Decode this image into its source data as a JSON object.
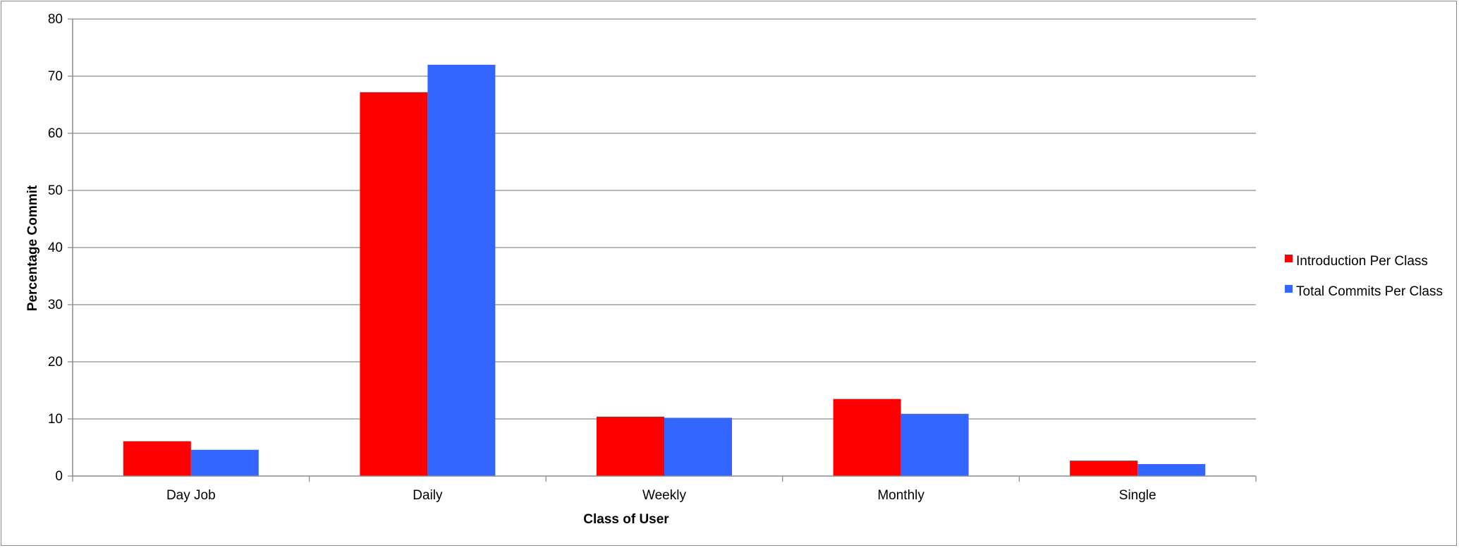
{
  "chart_data": {
    "type": "bar",
    "title": "",
    "xlabel": "Class of User",
    "ylabel": "Percentage Commit",
    "categories": [
      "Day Job",
      "Daily",
      "Weekly",
      "Monthly",
      "Single"
    ],
    "series": [
      {
        "name": "Introduction Per Class",
        "color": "#ff0000",
        "values": [
          6.1,
          67.2,
          10.4,
          13.5,
          2.7
        ]
      },
      {
        "name": "Total Commits Per Class",
        "color": "#3366ff",
        "values": [
          4.6,
          72.0,
          10.2,
          10.9,
          2.1
        ]
      }
    ],
    "ylim": [
      0,
      80
    ],
    "yticks": [
      0,
      10,
      20,
      30,
      40,
      50,
      60,
      70,
      80
    ],
    "grid": true,
    "legend_position": "right"
  }
}
